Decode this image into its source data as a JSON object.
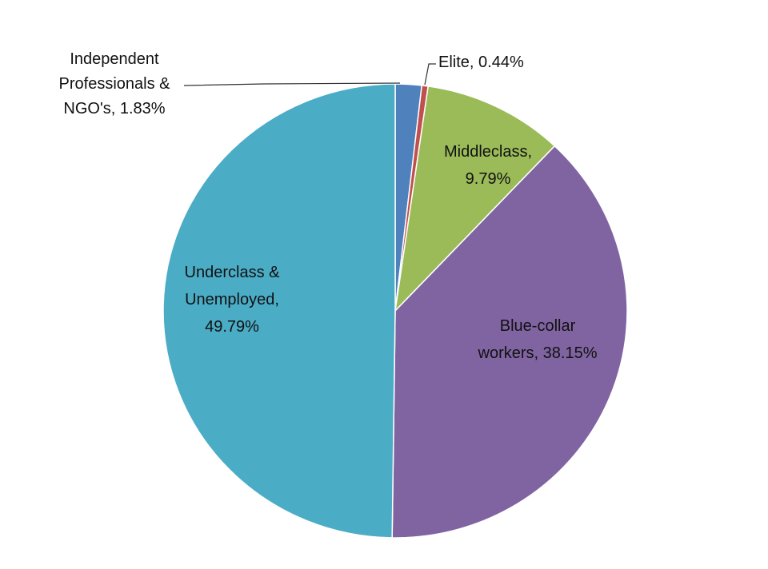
{
  "chart_data": {
    "type": "pie",
    "title": "",
    "start": "top",
    "direction": "clockwise",
    "slices": [
      {
        "label_lines": [
          "Independent",
          "Professionals &",
          "NGO's, 1.83%"
        ],
        "name": "Independent Professionals & NGO's",
        "value": 1.83,
        "color": "#4F81BD"
      },
      {
        "label_lines": [
          "Elite, 0.44%"
        ],
        "name": "Elite",
        "value": 0.44,
        "color": "#C0504D"
      },
      {
        "label_lines": [
          "Middleclass,",
          "9.79%"
        ],
        "name": "Middleclass",
        "value": 9.79,
        "color": "#9BBB59"
      },
      {
        "label_lines": [
          "Blue-collar",
          "workers, 38.15%"
        ],
        "name": "Blue-collar workers",
        "value": 38.15,
        "color": "#8064A2"
      },
      {
        "label_lines": [
          "Underclass &",
          "Unemployed,",
          "49.79%"
        ],
        "name": "Underclass & Unemployed",
        "value": 49.79,
        "color": "#4BACC6"
      }
    ]
  }
}
